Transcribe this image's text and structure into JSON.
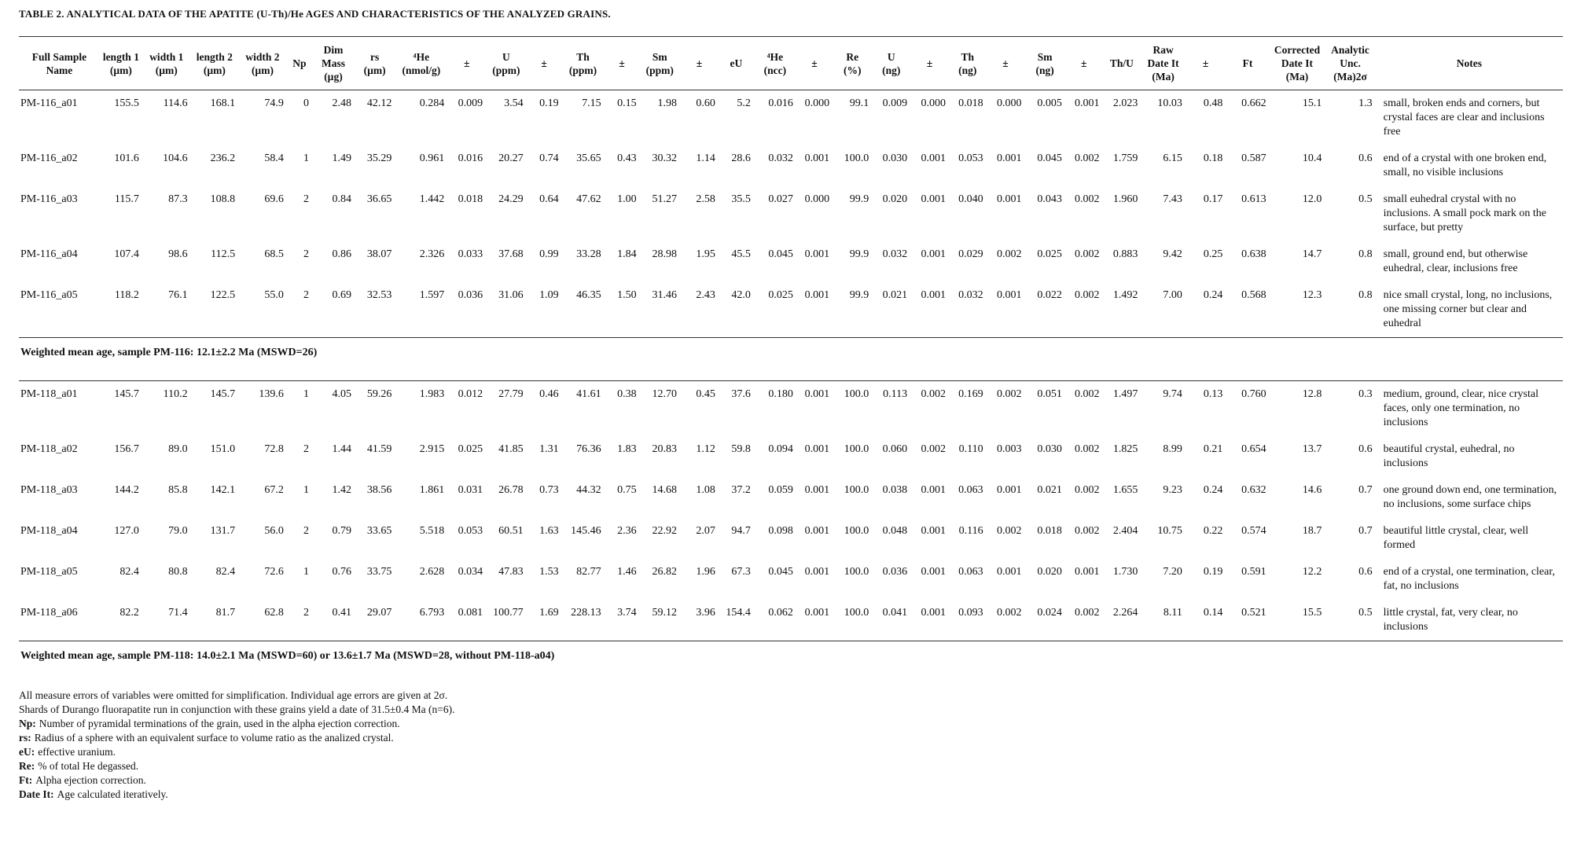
{
  "title": "TABLE 2. ANALYTICAL DATA OF THE APATITE (U-Th)/He AGES AND CHARACTERISTICS OF THE ANALYZED GRAINS.",
  "table": {
    "header": [
      [
        "Full Sample",
        "Name"
      ],
      [
        "length 1",
        "(µm)"
      ],
      [
        "width 1",
        "(µm)"
      ],
      [
        "length 2",
        "(µm)"
      ],
      [
        "width 2",
        "(µm)"
      ],
      [
        "Np"
      ],
      [
        "Dim",
        "Mass",
        "(µg)"
      ],
      [
        "rs",
        "(µm)"
      ],
      [
        "⁴He",
        "(nmol/g)"
      ],
      [
        "±"
      ],
      [
        "U",
        "(ppm)"
      ],
      [
        "±"
      ],
      [
        "Th",
        "(ppm)"
      ],
      [
        "±"
      ],
      [
        "Sm",
        "(ppm)"
      ],
      [
        "±"
      ],
      [
        "eU"
      ],
      [
        "⁴He",
        "(ncc)"
      ],
      [
        "±"
      ],
      [
        "Re",
        "(%)"
      ],
      [
        "U",
        "(ng)"
      ],
      [
        "±"
      ],
      [
        "Th",
        "(ng)"
      ],
      [
        "±"
      ],
      [
        "Sm",
        "(ng)"
      ],
      [
        "±"
      ],
      [
        "Th/U"
      ],
      [
        "Raw",
        "Date It",
        "(Ma)"
      ],
      [
        "±"
      ],
      [
        "Ft"
      ],
      [
        "Corrected",
        "Date It",
        "(Ma)"
      ],
      [
        "Analytic",
        "Unc.",
        "(Ma)2σ"
      ],
      [
        "Notes"
      ]
    ],
    "groups": [
      {
        "rows": [
          [
            "PM-116_a01",
            "155.5",
            "114.6",
            "168.1",
            "74.9",
            "0",
            "2.48",
            "42.12",
            "0.284",
            "0.009",
            "3.54",
            "0.19",
            "7.15",
            "0.15",
            "1.98",
            "0.60",
            "5.2",
            "0.016",
            "0.000",
            "99.1",
            "0.009",
            "0.000",
            "0.018",
            "0.000",
            "0.005",
            "0.001",
            "2.023",
            "10.03",
            "0.48",
            "0.662",
            "15.1",
            "1.3",
            "small, broken ends and corners, but crystal faces are clear and inclusions free"
          ],
          [
            "PM-116_a02",
            "101.6",
            "104.6",
            "236.2",
            "58.4",
            "1",
            "1.49",
            "35.29",
            "0.961",
            "0.016",
            "20.27",
            "0.74",
            "35.65",
            "0.43",
            "30.32",
            "1.14",
            "28.6",
            "0.032",
            "0.001",
            "100.0",
            "0.030",
            "0.001",
            "0.053",
            "0.001",
            "0.045",
            "0.002",
            "1.759",
            "6.15",
            "0.18",
            "0.587",
            "10.4",
            "0.6",
            "end of a crystal with one broken end, small, no visible inclusions"
          ],
          [
            "PM-116_a03",
            "115.7",
            "87.3",
            "108.8",
            "69.6",
            "2",
            "0.84",
            "36.65",
            "1.442",
            "0.018",
            "24.29",
            "0.64",
            "47.62",
            "1.00",
            "51.27",
            "2.58",
            "35.5",
            "0.027",
            "0.000",
            "99.9",
            "0.020",
            "0.001",
            "0.040",
            "0.001",
            "0.043",
            "0.002",
            "1.960",
            "7.43",
            "0.17",
            "0.613",
            "12.0",
            "0.5",
            "small euhedral crystal with no inclusions. A small pock mark on the surface, but pretty"
          ],
          [
            "PM-116_a04",
            "107.4",
            "98.6",
            "112.5",
            "68.5",
            "2",
            "0.86",
            "38.07",
            "2.326",
            "0.033",
            "37.68",
            "0.99",
            "33.28",
            "1.84",
            "28.98",
            "1.95",
            "45.5",
            "0.045",
            "0.001",
            "99.9",
            "0.032",
            "0.001",
            "0.029",
            "0.002",
            "0.025",
            "0.002",
            "0.883",
            "9.42",
            "0.25",
            "0.638",
            "14.7",
            "0.8",
            "small, ground end, but otherwise euhedral, clear, inclusions free"
          ],
          [
            "PM-116_a05",
            "118.2",
            "76.1",
            "122.5",
            "55.0",
            "2",
            "0.69",
            "32.53",
            "1.597",
            "0.036",
            "31.06",
            "1.09",
            "46.35",
            "1.50",
            "31.46",
            "2.43",
            "42.0",
            "0.025",
            "0.001",
            "99.9",
            "0.021",
            "0.001",
            "0.032",
            "0.001",
            "0.022",
            "0.002",
            "1.492",
            "7.00",
            "0.24",
            "0.568",
            "12.3",
            "0.8",
            "nice small crystal, long, no inclusions, one missing corner but clear and euhedral"
          ]
        ],
        "summary": "Weighted mean age, sample PM-116: 12.1±2.2 Ma (MSWD=26)"
      },
      {
        "rows": [
          [
            "PM-118_a01",
            "145.7",
            "110.2",
            "145.7",
            "139.6",
            "1",
            "4.05",
            "59.26",
            "1.983",
            "0.012",
            "27.79",
            "0.46",
            "41.61",
            "0.38",
            "12.70",
            "0.45",
            "37.6",
            "0.180",
            "0.001",
            "100.0",
            "0.113",
            "0.002",
            "0.169",
            "0.002",
            "0.051",
            "0.002",
            "1.497",
            "9.74",
            "0.13",
            "0.760",
            "12.8",
            "0.3",
            "medium, ground, clear, nice crystal faces, only one termination, no inclusions"
          ],
          [
            "PM-118_a02",
            "156.7",
            "89.0",
            "151.0",
            "72.8",
            "2",
            "1.44",
            "41.59",
            "2.915",
            "0.025",
            "41.85",
            "1.31",
            "76.36",
            "1.83",
            "20.83",
            "1.12",
            "59.8",
            "0.094",
            "0.001",
            "100.0",
            "0.060",
            "0.002",
            "0.110",
            "0.003",
            "0.030",
            "0.002",
            "1.825",
            "8.99",
            "0.21",
            "0.654",
            "13.7",
            "0.6",
            "beautiful crystal, euhedral, no inclusions"
          ],
          [
            "PM-118_a03",
            "144.2",
            "85.8",
            "142.1",
            "67.2",
            "1",
            "1.42",
            "38.56",
            "1.861",
            "0.031",
            "26.78",
            "0.73",
            "44.32",
            "0.75",
            "14.68",
            "1.08",
            "37.2",
            "0.059",
            "0.001",
            "100.0",
            "0.038",
            "0.001",
            "0.063",
            "0.001",
            "0.021",
            "0.002",
            "1.655",
            "9.23",
            "0.24",
            "0.632",
            "14.6",
            "0.7",
            "one ground down end, one termination, no inclusions, some surface chips"
          ],
          [
            "PM-118_a04",
            "127.0",
            "79.0",
            "131.7",
            "56.0",
            "2",
            "0.79",
            "33.65",
            "5.518",
            "0.053",
            "60.51",
            "1.63",
            "145.46",
            "2.36",
            "22.92",
            "2.07",
            "94.7",
            "0.098",
            "0.001",
            "100.0",
            "0.048",
            "0.001",
            "0.116",
            "0.002",
            "0.018",
            "0.002",
            "2.404",
            "10.75",
            "0.22",
            "0.574",
            "18.7",
            "0.7",
            "beautiful little crystal, clear, well formed"
          ],
          [
            "PM-118_a05",
            "82.4",
            "80.8",
            "82.4",
            "72.6",
            "1",
            "0.76",
            "33.75",
            "2.628",
            "0.034",
            "47.83",
            "1.53",
            "82.77",
            "1.46",
            "26.82",
            "1.96",
            "67.3",
            "0.045",
            "0.001",
            "100.0",
            "0.036",
            "0.001",
            "0.063",
            "0.001",
            "0.020",
            "0.001",
            "1.730",
            "7.20",
            "0.19",
            "0.591",
            "12.2",
            "0.6",
            "end of a crystal, one termination, clear, fat, no inclusions"
          ],
          [
            "PM-118_a06",
            "82.2",
            "71.4",
            "81.7",
            "62.8",
            "2",
            "0.41",
            "29.07",
            "6.793",
            "0.081",
            "100.77",
            "1.69",
            "228.13",
            "3.74",
            "59.12",
            "3.96",
            "154.4",
            "0.062",
            "0.001",
            "100.0",
            "0.041",
            "0.001",
            "0.093",
            "0.002",
            "0.024",
            "0.002",
            "2.264",
            "8.11",
            "0.14",
            "0.521",
            "15.5",
            "0.5",
            "little crystal, fat, very clear, no inclusions"
          ]
        ],
        "summary": "Weighted mean age, sample PM-118: 14.0±2.1 Ma (MSWD=60) or 13.6±1.7 Ma (MSWD=28, without PM-118-a04)"
      }
    ]
  },
  "footnotes": [
    {
      "text": "All measure errors of variables were omitted for simplification. Individual age errors are given at 2σ."
    },
    {
      "text": "Shards of Durango fluorapatite run in conjunction with these grains yield a date of 31.5±0.4 Ma (n=6)."
    },
    {
      "term": "Np:",
      "text": "Number of pyramidal terminations of the grain, used in the alpha ejection correction."
    },
    {
      "term": "rs:",
      "text": "Radius of a sphere with an equivalent surface to volume ratio as the analized crystal."
    },
    {
      "term": "eU:",
      "text": "effective uranium."
    },
    {
      "term": "Re:",
      "text": "% of total He degassed."
    },
    {
      "term": "Ft:",
      "text": "Alpha ejection correction."
    },
    {
      "term": "Date It:",
      "text": "Age calculated iteratively."
    }
  ]
}
